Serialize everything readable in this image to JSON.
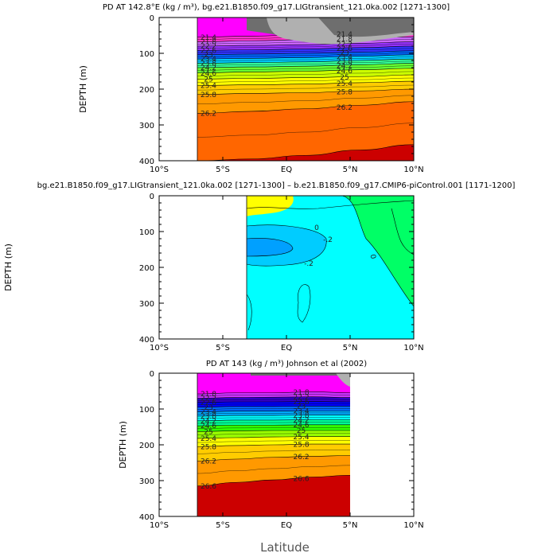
{
  "figure": {
    "xlabel": "Latitude"
  },
  "chart_data": [
    {
      "type": "contour",
      "title": "PD AT 142.8°E (kg / m³), bg.e21.B1850.f09_g17.LIGtransient_121.0ka.002 [1271-1300]",
      "ylabel": "DEPTH (m)",
      "xlabel": "",
      "x_ticks": [
        "10°S",
        "5°S",
        "EQ",
        "5°N",
        "10°N"
      ],
      "x_range": [
        -10,
        10
      ],
      "y_ticks": [
        0,
        100,
        200,
        300,
        400
      ],
      "y_range": [
        0,
        400
      ],
      "data_x_range": [
        -7,
        10
      ],
      "fill_colors": [
        "#ff00ff",
        "#ff33cc",
        "#cc66ff",
        "#9933ff",
        "#3333ff",
        "#0066ff",
        "#00ccff",
        "#33ff99",
        "#66ff33",
        "#ccff00",
        "#ffff00",
        "#ffcc00",
        "#ff9900",
        "#ff6600",
        "#ff3300",
        "#ee0000",
        "#cc0000"
      ],
      "levels": [
        {
          "value": 21.4,
          "label": "21.4",
          "depths": [
            55,
            52,
            48,
            45,
            40
          ]
        },
        {
          "value": 21.8,
          "label": "21.8",
          "depths": [
            68,
            65,
            62,
            58,
            54
          ]
        },
        {
          "value": 22.2,
          "label": "22.2",
          "depths": [
            80,
            78,
            76,
            72,
            68
          ]
        },
        {
          "value": 22.6,
          "label": "22.6",
          "depths": [
            92,
            90,
            88,
            84,
            80
          ]
        },
        {
          "value": 23,
          "label": "23",
          "depths": [
            104,
            102,
            100,
            97,
            93
          ]
        },
        {
          "value": 23.4,
          "label": "23.4",
          "depths": [
            116,
            114,
            112,
            108,
            104
          ]
        },
        {
          "value": 23.8,
          "label": "23.8",
          "depths": [
            128,
            126,
            124,
            120,
            116
          ]
        },
        {
          "value": 24.2,
          "label": "24.2",
          "depths": [
            140,
            138,
            136,
            132,
            128
          ]
        },
        {
          "value": 24.6,
          "label": "24.6",
          "depths": [
            155,
            152,
            150,
            146,
            142
          ]
        },
        {
          "value": 25,
          "label": "25",
          "depths": [
            172,
            170,
            168,
            165,
            160
          ]
        },
        {
          "value": 25.4,
          "label": "25.4",
          "depths": [
            190,
            188,
            186,
            182,
            178
          ]
        },
        {
          "value": 25.8,
          "label": "25.8",
          "depths": [
            215,
            212,
            210,
            205,
            200
          ]
        },
        {
          "value": 26.2,
          "label": "26.2",
          "depths": [
            268,
            262,
            255,
            245,
            235
          ]
        },
        {
          "value": 26.6,
          "label": "",
          "depths": [
            400,
            395,
            385,
            370,
            355
          ]
        }
      ]
    },
    {
      "type": "contour",
      "title": "bg.e21.B1850.f09_g17.LIGtransient_121.0ka.002 [1271-1300] – b.e21.B1850.f09_g17.CMIP6-piControl.001 [1171-1200]",
      "ylabel": "DEPTH (m)",
      "xlabel": "",
      "x_ticks": [
        "10°S",
        "5°S",
        "EQ",
        "5°N",
        "10°N"
      ],
      "x_range": [
        -10,
        10
      ],
      "y_ticks": [
        0,
        100,
        200,
        300,
        400
      ],
      "y_range": [
        0,
        400
      ],
      "data_x_range": [
        -7,
        10
      ],
      "contour_labels": [
        "0",
        "-.2",
        "-.2",
        "0"
      ],
      "region_colors": {
        "positive": "#ffff00",
        "zero": "#00ff66",
        "slightly_negative": "#00ffff",
        "negative": "#00ccff",
        "most_negative": "#00a0ff"
      }
    },
    {
      "type": "contour",
      "title": "PD AT 143 (kg / m³) Johnson et al (2002)",
      "ylabel": "DEPTH (m)",
      "xlabel": "",
      "x_ticks": [
        "10°S",
        "5°S",
        "EQ",
        "5°N",
        "10°N"
      ],
      "x_range": [
        -10,
        10
      ],
      "y_ticks": [
        0,
        100,
        200,
        300,
        400
      ],
      "y_range": [
        0,
        400
      ],
      "data_x_range": [
        -7,
        5
      ],
      "fill_colors": [
        "#ff00ff",
        "#cc33ff",
        "#3300cc",
        "#0000ff",
        "#0066ff",
        "#00aaff",
        "#00ffff",
        "#00ff99",
        "#33ff00",
        "#99ff00",
        "#ffff00",
        "#ffcc00",
        "#ff9900",
        "#ff6600",
        "#ff3300",
        "#ee0000",
        "#cc0000"
      ],
      "levels": [
        {
          "value": 21.8,
          "label": "21.8",
          "depths": [
            58,
            55,
            55,
            52,
            55
          ]
        },
        {
          "value": 22.2,
          "label": "22.2",
          "depths": [
            70,
            68,
            67,
            66,
            68
          ]
        },
        {
          "value": 22.6,
          "label": "22.6",
          "depths": [
            82,
            80,
            80,
            79,
            80
          ]
        },
        {
          "value": 23,
          "label": "23",
          "depths": [
            95,
            93,
            93,
            92,
            92
          ]
        },
        {
          "value": 23.4,
          "label": "23.4",
          "depths": [
            108,
            106,
            106,
            105,
            105
          ]
        },
        {
          "value": 23.8,
          "label": "23.8",
          "depths": [
            120,
            118,
            118,
            117,
            117
          ]
        },
        {
          "value": 24.2,
          "label": "24.2",
          "depths": [
            133,
            131,
            131,
            130,
            130
          ]
        },
        {
          "value": 24.6,
          "label": "24.6",
          "depths": [
            147,
            145,
            145,
            144,
            144
          ]
        },
        {
          "value": 25,
          "label": "25",
          "depths": [
            163,
            161,
            160,
            160,
            160
          ]
        },
        {
          "value": 25.4,
          "label": "25.4",
          "depths": [
            182,
            180,
            178,
            177,
            177
          ]
        },
        {
          "value": 25.8,
          "label": "25.8",
          "depths": [
            205,
            202,
            200,
            198,
            198
          ]
        },
        {
          "value": 26.2,
          "label": "26.2",
          "depths": [
            245,
            240,
            235,
            232,
            230
          ]
        },
        {
          "value": 26.6,
          "label": "26.6",
          "depths": [
            315,
            305,
            298,
            290,
            285
          ]
        }
      ]
    }
  ]
}
